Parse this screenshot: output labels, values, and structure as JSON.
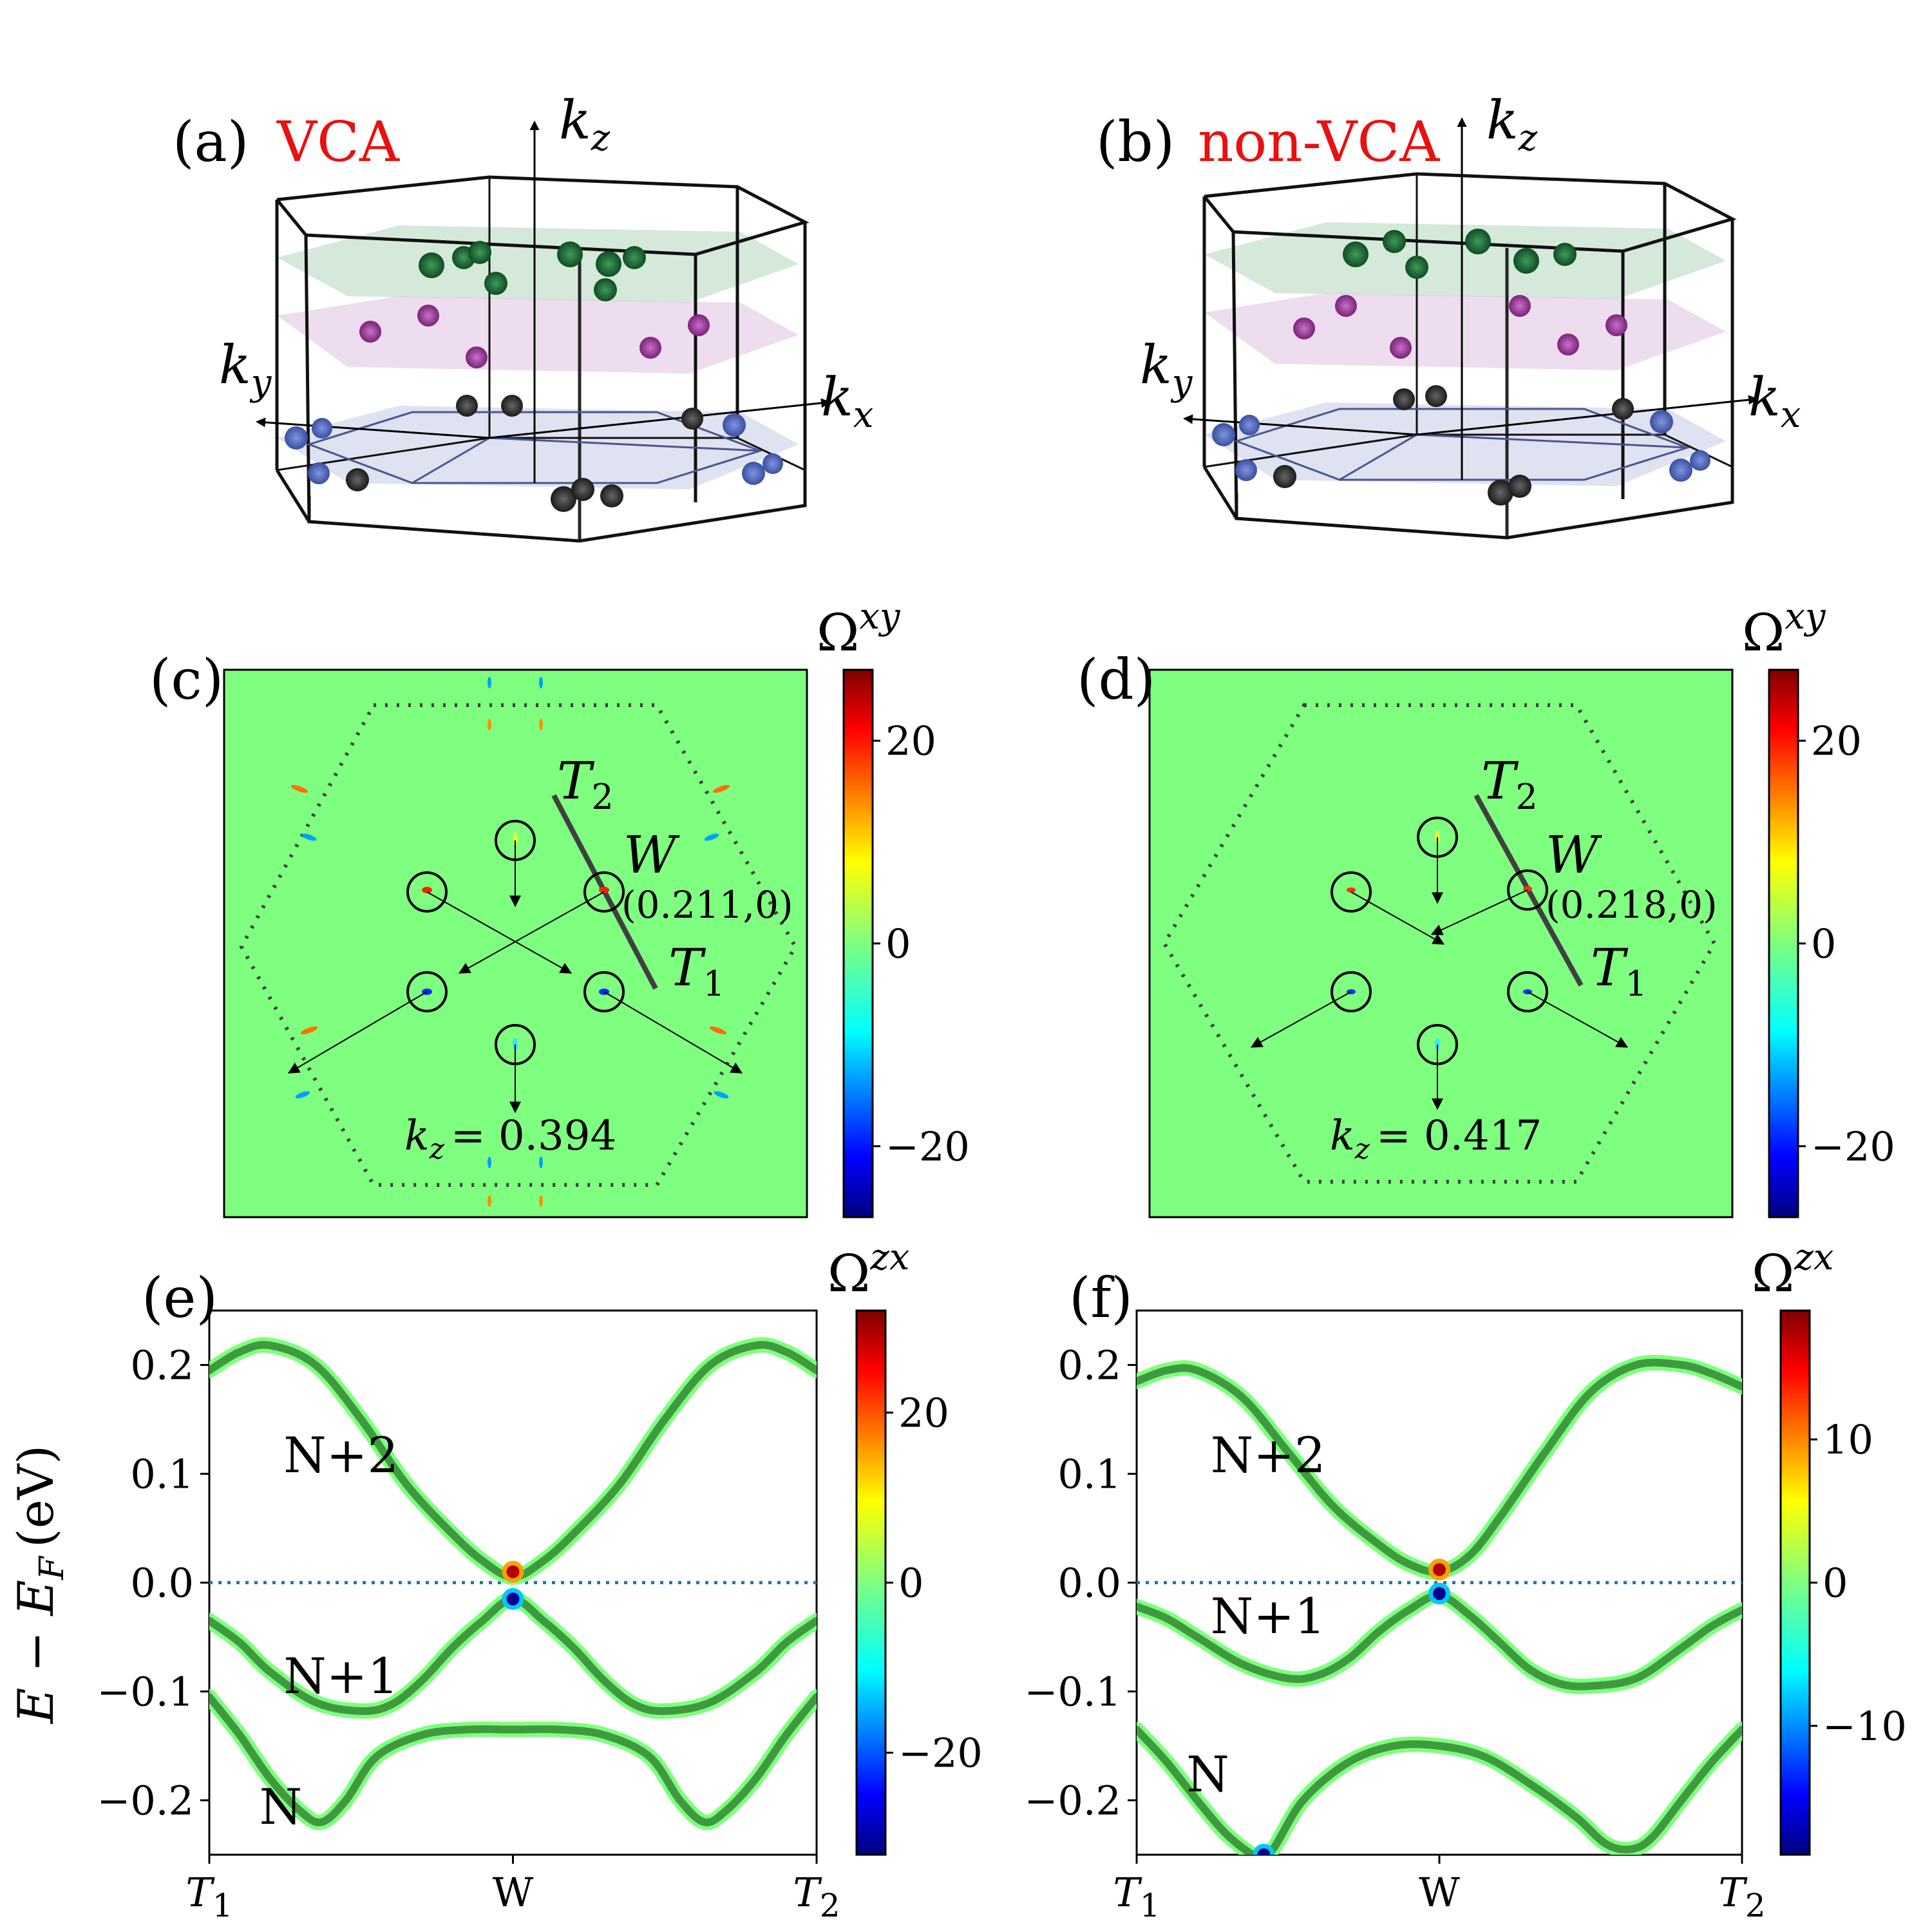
{
  "panels_3d": [
    {
      "id": "(a)",
      "tag": "VCA",
      "axes": {
        "kz": "k",
        "kz_sub": "z",
        "kx": "k",
        "kx_sub": "x",
        "ky": "k",
        "ky_sub": "y"
      }
    },
    {
      "id": "(b)",
      "tag": "non-VCA",
      "axes": {
        "kz": "k",
        "kz_sub": "z",
        "kx": "k",
        "kx_sub": "x",
        "ky": "k",
        "ky_sub": "y"
      }
    }
  ],
  "chart_data": [
    {
      "type": "heatmap",
      "panel": "(c)",
      "colorbar_label": "Ω",
      "colorbar_sup": "xy",
      "colorbar_range": [
        -27,
        27
      ],
      "colorbar_ticks": [
        20,
        0,
        -20
      ],
      "colorbar_tick_labels": [
        "20",
        "0",
        "−20"
      ],
      "path_labels": {
        "T2": "T",
        "T2_sub": "2",
        "T1": "T",
        "T1_sub": "1",
        "W": "W"
      },
      "weyl_point": "(0.211,0)",
      "kz_label": "k",
      "kz_sub": "z",
      "kz_value": "= 0.394"
    },
    {
      "type": "heatmap",
      "panel": "(d)",
      "colorbar_label": "Ω",
      "colorbar_sup": "xy",
      "colorbar_range": [
        -27,
        27
      ],
      "colorbar_ticks": [
        20,
        0,
        -20
      ],
      "colorbar_tick_labels": [
        "20",
        "0",
        "−20"
      ],
      "path_labels": {
        "T2": "T",
        "T2_sub": "2",
        "T1": "T",
        "T1_sub": "1",
        "W": "W"
      },
      "weyl_point": "(0.218,0)",
      "kz_label": "k",
      "kz_sub": "z",
      "kz_value": "= 0.417"
    },
    {
      "type": "line",
      "panel": "(e)",
      "ylabel": "E − E",
      "ylabel_sub": "F",
      "ylabel_unit": "(eV)",
      "ylim": [
        -0.25,
        0.25
      ],
      "yticks": [
        0.2,
        0.1,
        0.0,
        -0.1,
        -0.2
      ],
      "ytick_labels": [
        "0.2",
        "0.1",
        "0.0",
        "−0.1",
        "−0.2"
      ],
      "xlim": [
        0,
        2
      ],
      "xticks": [
        0,
        1,
        2
      ],
      "xtick_labels": [
        "T",
        "W",
        "T"
      ],
      "xtick_subs": [
        "1",
        "",
        "2"
      ],
      "fermi_level": 0.0,
      "colorbar_label": "Ω",
      "colorbar_sup": "zx",
      "colorbar_range": [
        -32,
        32
      ],
      "colorbar_ticks": [
        20,
        0,
        -20
      ],
      "colorbar_tick_labels": [
        "20",
        "0",
        "−20"
      ],
      "band_labels": [
        {
          "text": "N+2",
          "x": 0.34,
          "y": 0.118
        },
        {
          "text": "N+1",
          "x": 0.34,
          "y": -0.085
        },
        {
          "text": "N",
          "x": 0.26,
          "y": -0.205
        }
      ],
      "series": [
        {
          "name": "N+2",
          "x": [
            0,
            0.1,
            0.2,
            0.35,
            0.5,
            0.65,
            0.8,
            0.9,
            1.0,
            1.1,
            1.2,
            1.35,
            1.5,
            1.65,
            1.8,
            1.9,
            2.0
          ],
          "y": [
            0.195,
            0.212,
            0.218,
            0.2,
            0.15,
            0.09,
            0.045,
            0.02,
            0.005,
            0.02,
            0.045,
            0.09,
            0.15,
            0.2,
            0.218,
            0.212,
            0.195
          ]
        },
        {
          "name": "N+1",
          "x": [
            0,
            0.1,
            0.2,
            0.35,
            0.5,
            0.6,
            0.7,
            0.8,
            0.9,
            1.0,
            1.1,
            1.2,
            1.3,
            1.4,
            1.5,
            1.65,
            1.8,
            1.9,
            2.0
          ],
          "y": [
            -0.035,
            -0.055,
            -0.082,
            -0.11,
            -0.118,
            -0.112,
            -0.09,
            -0.06,
            -0.035,
            -0.015,
            -0.035,
            -0.06,
            -0.09,
            -0.112,
            -0.118,
            -0.11,
            -0.082,
            -0.055,
            -0.035
          ]
        },
        {
          "name": "N",
          "x": [
            0,
            0.1,
            0.2,
            0.3,
            0.37,
            0.45,
            0.55,
            0.7,
            0.85,
            1.0,
            1.15,
            1.3,
            1.45,
            1.55,
            1.63,
            1.7,
            1.8,
            1.9,
            2.0
          ],
          "y": [
            -0.105,
            -0.14,
            -0.18,
            -0.21,
            -0.22,
            -0.2,
            -0.16,
            -0.14,
            -0.135,
            -0.135,
            -0.135,
            -0.14,
            -0.16,
            -0.2,
            -0.22,
            -0.21,
            -0.18,
            -0.14,
            -0.105
          ]
        }
      ],
      "hotspots": [
        {
          "x": 1.0,
          "y": 0.01,
          "sign": 1
        },
        {
          "x": 1.0,
          "y": -0.015,
          "sign": -1
        }
      ]
    },
    {
      "type": "line",
      "panel": "(f)",
      "ylabel": "",
      "ylim": [
        -0.25,
        0.25
      ],
      "yticks": [
        0.2,
        0.1,
        0.0,
        -0.1,
        -0.2
      ],
      "ytick_labels": [
        "0.2",
        "0.1",
        "0.0",
        "−0.1",
        "−0.2"
      ],
      "xlim": [
        0,
        2
      ],
      "xticks": [
        0,
        1,
        2
      ],
      "xtick_labels": [
        "T",
        "W",
        "T"
      ],
      "xtick_subs": [
        "1",
        "",
        "2"
      ],
      "fermi_level": 0.0,
      "colorbar_label": "Ω",
      "colorbar_sup": "zx",
      "colorbar_range": [
        -19,
        19
      ],
      "colorbar_ticks": [
        10,
        0,
        -10
      ],
      "colorbar_tick_labels": [
        "10",
        "0",
        "−10"
      ],
      "band_labels": [
        {
          "text": "N+2",
          "x": 0.34,
          "y": 0.118
        },
        {
          "text": "N+1",
          "x": 0.34,
          "y": -0.03
        },
        {
          "text": "N",
          "x": 0.26,
          "y": -0.175
        }
      ],
      "series": [
        {
          "name": "N+2",
          "x": [
            0,
            0.1,
            0.2,
            0.35,
            0.5,
            0.65,
            0.8,
            0.9,
            1.0,
            1.1,
            1.2,
            1.35,
            1.5,
            1.65,
            1.8,
            1.9,
            2.0
          ],
          "y": [
            0.185,
            0.195,
            0.195,
            0.17,
            0.12,
            0.07,
            0.035,
            0.017,
            0.01,
            0.025,
            0.06,
            0.12,
            0.175,
            0.2,
            0.2,
            0.192,
            0.18
          ]
        },
        {
          "name": "N+1",
          "x": [
            0,
            0.1,
            0.2,
            0.35,
            0.5,
            0.6,
            0.7,
            0.8,
            0.9,
            1.0,
            1.1,
            1.2,
            1.3,
            1.4,
            1.5,
            1.65,
            1.8,
            1.9,
            2.0
          ],
          "y": [
            -0.022,
            -0.033,
            -0.05,
            -0.075,
            -0.088,
            -0.085,
            -0.07,
            -0.045,
            -0.025,
            -0.012,
            -0.03,
            -0.055,
            -0.08,
            -0.093,
            -0.095,
            -0.088,
            -0.06,
            -0.04,
            -0.025
          ]
        },
        {
          "name": "N",
          "x": [
            0,
            0.1,
            0.2,
            0.3,
            0.4,
            0.45,
            0.55,
            0.7,
            0.85,
            1.0,
            1.15,
            1.3,
            1.45,
            1.55,
            1.63,
            1.7,
            1.8,
            1.9,
            2.0
          ],
          "y": [
            -0.135,
            -0.165,
            -0.2,
            -0.232,
            -0.252,
            -0.245,
            -0.2,
            -0.165,
            -0.15,
            -0.15,
            -0.16,
            -0.185,
            -0.215,
            -0.24,
            -0.245,
            -0.235,
            -0.2,
            -0.165,
            -0.135
          ]
        }
      ],
      "hotspots": [
        {
          "x": 1.0,
          "y": 0.012,
          "sign": 1
        },
        {
          "x": 1.0,
          "y": -0.01,
          "sign": -1
        },
        {
          "x": 0.42,
          "y": -0.25,
          "sign": -1
        }
      ]
    }
  ]
}
